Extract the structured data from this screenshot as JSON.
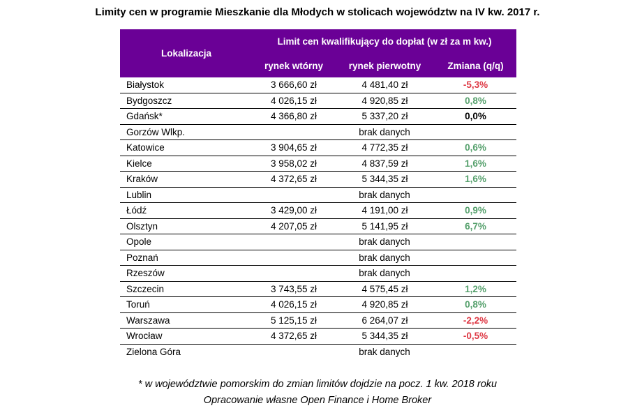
{
  "title": "Limity cen w programie Mieszkanie dla Młodych w stolicach województw na IV kw. 2017 r.",
  "colors": {
    "header_bg": "#6A0096",
    "header_text": "#FFFFFF",
    "negative": "#DE3945",
    "positive": "#55A06C",
    "neutral": "#000000",
    "border": "#000000"
  },
  "chart_data": {
    "type": "table",
    "title": "Limity cen w programie Mieszkanie dla Młodych w stolicach województw na IV kw. 2017 r.",
    "location_header": "Lokalizacja",
    "group_header": "Limit cen kwalifikujący do dopłat (w zł za m kw.)",
    "columns": [
      "rynek wtórny",
      "rynek pierwotny",
      "Zmiana (q/q)"
    ],
    "no_data_label": "brak danych",
    "rows": [
      {
        "city": "Białystok",
        "secondary_market": "3 666,60 zł",
        "primary_market": "4 481,40 zł",
        "change": "-5,3%",
        "change_color": "negative"
      },
      {
        "city": "Bydgoszcz",
        "secondary_market": "4 026,15 zł",
        "primary_market": "4 920,85 zł",
        "change": "0,8%",
        "change_color": "positive"
      },
      {
        "city": "Gdańsk*",
        "secondary_market": "4 366,80 zł",
        "primary_market": "5 337,20 zł",
        "change": "0,0%",
        "change_color": "neutral"
      },
      {
        "city": "Gorzów Wlkp.",
        "no_data": true
      },
      {
        "city": "Katowice",
        "secondary_market": "3 904,65 zł",
        "primary_market": "4 772,35 zł",
        "change": "0,6%",
        "change_color": "positive"
      },
      {
        "city": "Kielce",
        "secondary_market": "3 958,02 zł",
        "primary_market": "4 837,59 zł",
        "change": "1,6%",
        "change_color": "positive"
      },
      {
        "city": "Kraków",
        "secondary_market": "4 372,65 zł",
        "primary_market": "5 344,35 zł",
        "change": "1,6%",
        "change_color": "positive"
      },
      {
        "city": "Lublin",
        "no_data": true
      },
      {
        "city": "Łódź",
        "secondary_market": "3 429,00 zł",
        "primary_market": "4 191,00 zł",
        "change": "0,9%",
        "change_color": "positive"
      },
      {
        "city": "Olsztyn",
        "secondary_market": "4 207,05 zł",
        "primary_market": "5 141,95 zł",
        "change": "6,7%",
        "change_color": "positive"
      },
      {
        "city": "Opole",
        "no_data": true
      },
      {
        "city": "Poznań",
        "no_data": true
      },
      {
        "city": "Rzeszów",
        "no_data": true
      },
      {
        "city": "Szczecin",
        "secondary_market": "3 743,55 zł",
        "primary_market": "4 575,45 zł",
        "change": "1,2%",
        "change_color": "positive"
      },
      {
        "city": "Toruń",
        "secondary_market": "4 026,15 zł",
        "primary_market": "4 920,85 zł",
        "change": "0,8%",
        "change_color": "positive"
      },
      {
        "city": "Warszawa",
        "secondary_market": "5 125,15 zł",
        "primary_market": "6 264,07 zł",
        "change": "-2,2%",
        "change_color": "negative"
      },
      {
        "city": "Wrocław",
        "secondary_market": "4 372,65 zł",
        "primary_market": "5 344,35 zł",
        "change": "-0,5%",
        "change_color": "negative"
      },
      {
        "city": "Zielona Góra",
        "no_data": true
      }
    ],
    "footnotes": [
      "* w województwie pomorskim do zmian limitów dojdzie na pocz. 1 kw. 2018 roku",
      "Opracowanie własne Open Finance i Home Broker"
    ]
  }
}
